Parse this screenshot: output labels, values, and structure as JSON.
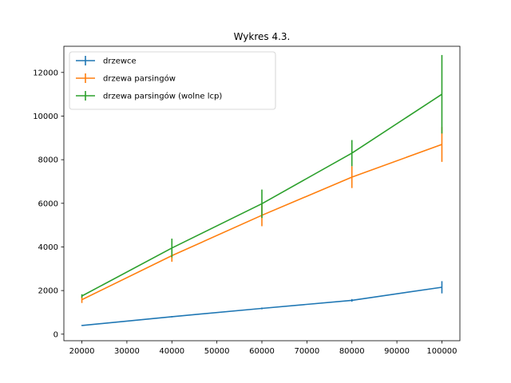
{
  "chart_data": {
    "type": "line",
    "title": "Wykres 4.3.",
    "xlabel": "",
    "ylabel": "",
    "x": [
      20000,
      40000,
      60000,
      80000,
      100000
    ],
    "xlim": [
      16000,
      104000
    ],
    "ylim": [
      -300,
      13200
    ],
    "x_ticks": [
      20000,
      30000,
      40000,
      50000,
      60000,
      70000,
      80000,
      90000,
      100000
    ],
    "y_ticks": [
      0,
      2000,
      4000,
      6000,
      8000,
      10000,
      12000
    ],
    "grid": false,
    "legend_position": "top-left",
    "series": [
      {
        "name": "drzewce",
        "color": "#1f77b4",
        "values": [
          400,
          800,
          1180,
          1550,
          2150
        ],
        "errors": [
          20,
          30,
          40,
          60,
          280
        ]
      },
      {
        "name": "drzewa parsingów",
        "color": "#ff7f0e",
        "values": [
          1580,
          3600,
          5450,
          7200,
          8700
        ],
        "errors": [
          150,
          280,
          500,
          500,
          800
        ]
      },
      {
        "name": "drzewa parsingów (wolne lcp)",
        "color": "#2ca02c",
        "values": [
          1750,
          3950,
          5980,
          8300,
          11000
        ],
        "errors": [
          80,
          430,
          650,
          600,
          1800
        ]
      }
    ]
  }
}
